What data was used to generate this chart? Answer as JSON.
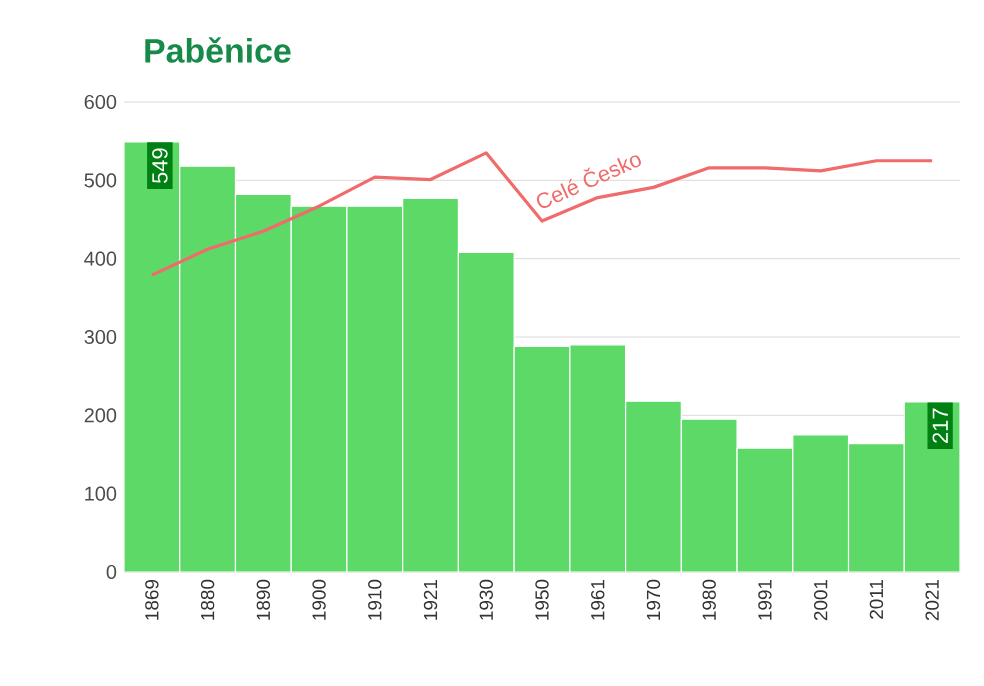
{
  "chart_data": {
    "type": "bar",
    "title": "Paběnice",
    "categories": [
      "1869",
      "1880",
      "1890",
      "1900",
      "1910",
      "1921",
      "1930",
      "1950",
      "1961",
      "1970",
      "1980",
      "1991",
      "2001",
      "2011",
      "2021"
    ],
    "series": [
      {
        "color": "#5cd966",
        "values": [
          549,
          518,
          482,
          467,
          467,
          477,
          408,
          288,
          290,
          218,
          195,
          158,
          175,
          164,
          217
        ],
        "value_labels": [
          "549",
          null,
          null,
          null,
          null,
          null,
          null,
          null,
          null,
          null,
          null,
          null,
          null,
          null,
          "217"
        ]
      },
      {
        "type": "line",
        "name": "Celé Česko",
        "color": "#f06b6b",
        "values": [
          379,
          412,
          435,
          467,
          504,
          501,
          535,
          448,
          478,
          491,
          516,
          516,
          512,
          525,
          525
        ]
      }
    ],
    "ylim": [
      0,
      600
    ],
    "yticks": [
      0,
      100,
      200,
      300,
      400,
      500,
      600
    ],
    "grid": "y"
  }
}
